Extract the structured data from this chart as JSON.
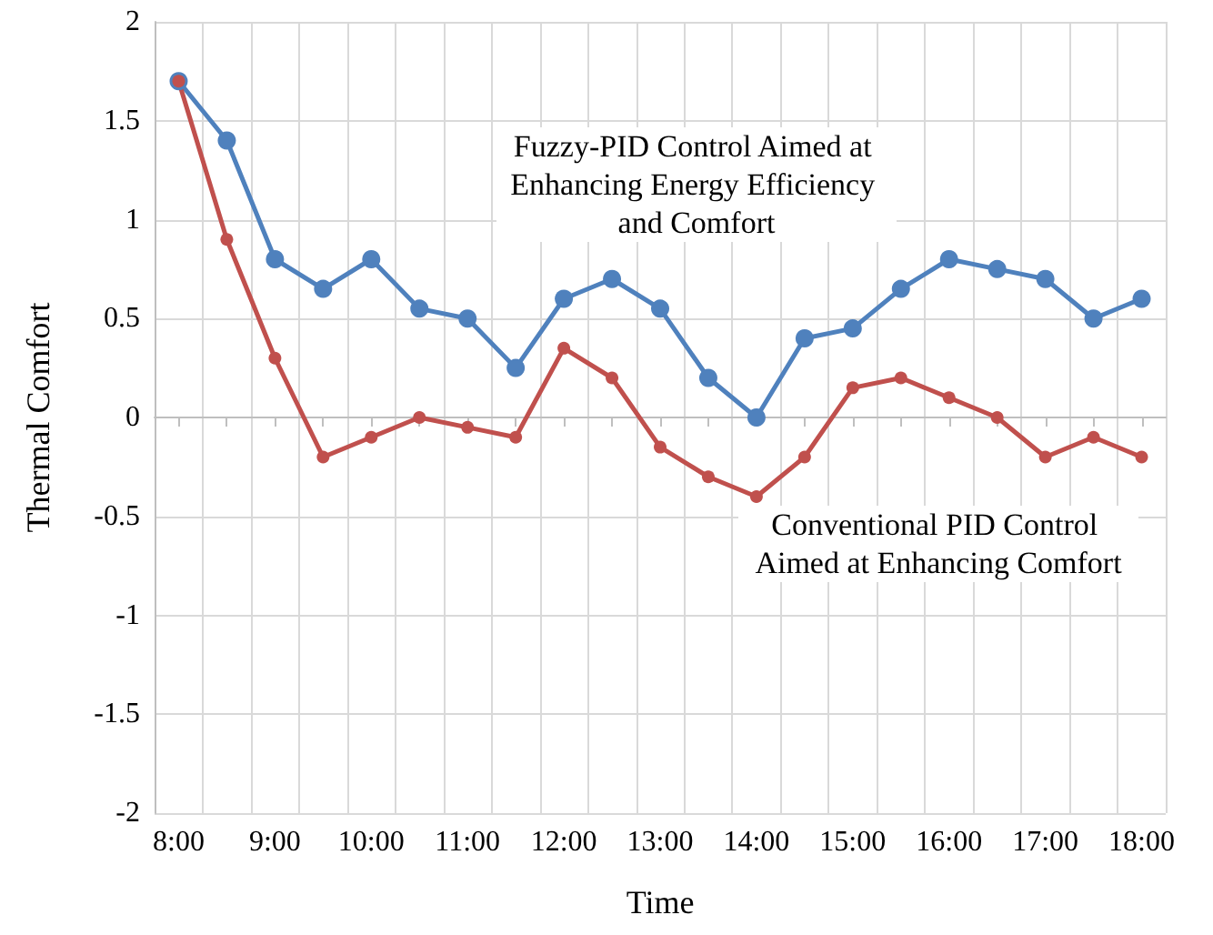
{
  "chart_data": {
    "type": "line",
    "xlabel": "Time",
    "ylabel": "Thermal Comfort",
    "categories": [
      "8:00",
      null,
      "9:00",
      null,
      "10:00",
      null,
      "11:00",
      null,
      "12:00",
      null,
      "13:00",
      null,
      "14:00",
      null,
      "15:00",
      null,
      "16:00",
      null,
      "17:00",
      null,
      "18:00"
    ],
    "series": [
      {
        "name": "Fuzzy-PID Control Aimed at Enhancing Energy Efficiency and Comfort",
        "color": "#4f81bd",
        "values": [
          1.7,
          1.4,
          0.8,
          0.65,
          0.8,
          0.55,
          0.5,
          0.25,
          0.6,
          0.7,
          0.55,
          0.2,
          0.0,
          0.4,
          0.45,
          0.65,
          0.8,
          0.75,
          0.7,
          0.5,
          0.6
        ]
      },
      {
        "name": "Conventional PID Control Aimed at Enhancing Comfort",
        "color": "#c0504d",
        "values": [
          1.7,
          0.9,
          0.3,
          -0.2,
          -0.1,
          0.0,
          -0.05,
          -0.1,
          0.35,
          0.2,
          -0.15,
          -0.3,
          -0.4,
          -0.2,
          0.15,
          0.2,
          0.1,
          0.0,
          -0.2,
          -0.1,
          -0.2
        ]
      }
    ],
    "ylim": [
      -2,
      2
    ],
    "yticks": [
      -2,
      -1.5,
      -1,
      -0.5,
      0,
      0.5,
      1,
      1.5,
      2
    ],
    "grid": true,
    "legend": false,
    "marker": "circle",
    "line_style": "solid"
  }
}
